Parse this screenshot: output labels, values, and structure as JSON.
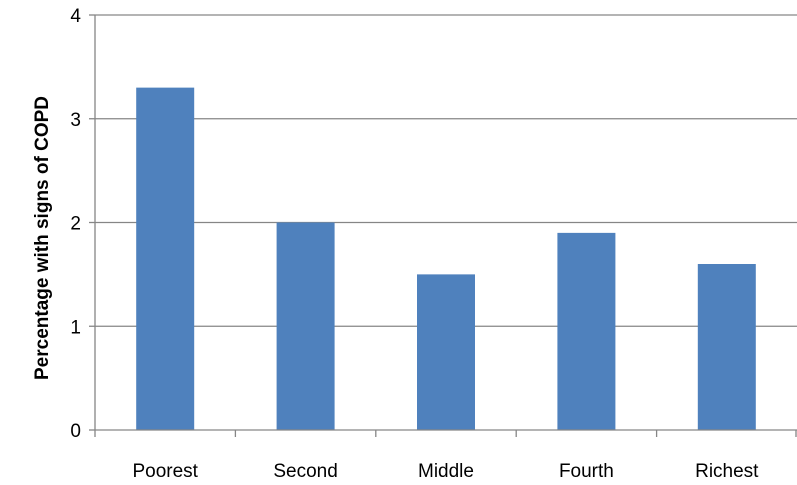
{
  "chart_data": {
    "type": "bar",
    "title": "",
    "xlabel": "",
    "ylabel": "Percentage with signs  of COPD",
    "categories": [
      "Poorest",
      "Second",
      "Middle",
      "Fourth",
      "Richest"
    ],
    "values": [
      3.3,
      2.0,
      1.5,
      1.9,
      1.6
    ],
    "ylim": [
      0,
      4
    ],
    "yticks": [
      "0",
      "1",
      "2",
      "3",
      "4"
    ],
    "grid": true,
    "legend": "none",
    "colors": {
      "bar": "#4F81BD",
      "grid": "#868686",
      "axis": "#868686"
    }
  }
}
